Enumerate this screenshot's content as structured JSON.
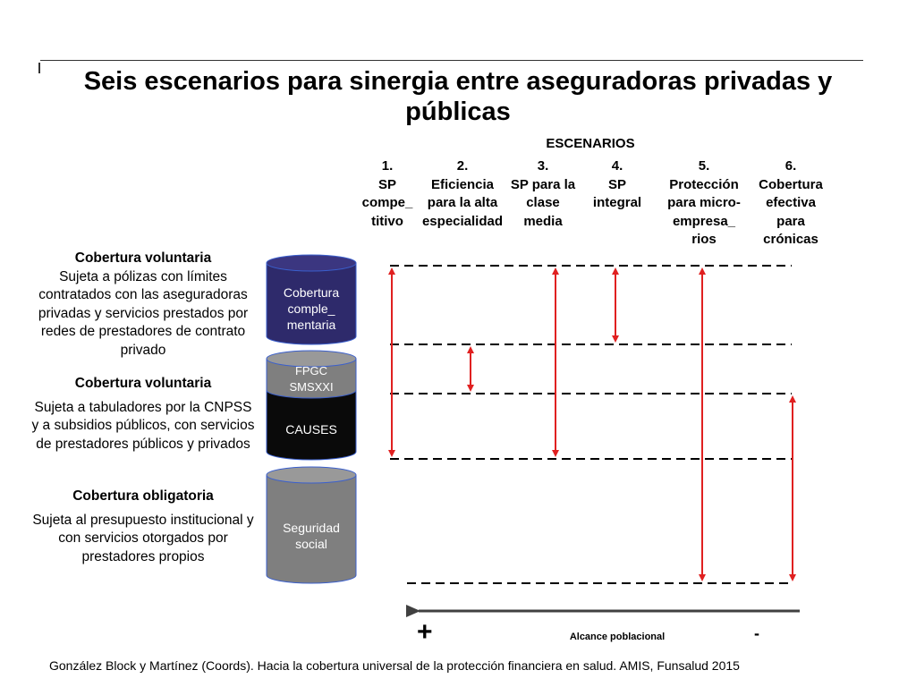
{
  "title": "Seis escenarios para sinergia entre aseguradoras privadas y públicas",
  "escenarios_header": "ESCENARIOS",
  "scenarios": [
    {
      "label": "1.\nSP\ncompe_\ntitivo"
    },
    {
      "label": "2.\nEficiencia\npara la alta\nespecialidad"
    },
    {
      "label": "3.\nSP para la\nclase\nmedia"
    },
    {
      "label": "4.\nSP\nintegral"
    },
    {
      "label": "5.\nProtección\npara micro-\nempresa_\nrios"
    },
    {
      "label": "6.\nCobertura\nefectiva\npara\ncrónicas"
    }
  ],
  "coverage": [
    {
      "heading": "Cobertura voluntaria",
      "text": "Sujeta a pólizas con límites contratados con las aseguradoras privadas y servicios prestados por redes de prestadores de contrato privado"
    },
    {
      "heading": "Cobertura voluntaria",
      "text": "Sujeta a tabuladores por la CNPSS y a subsidios públicos, con servicios de prestadores públicos y privados"
    },
    {
      "heading": "Cobertura obligatoria",
      "text": "Sujeta al presupuesto institucional y con servicios otorgados por prestadores propios"
    }
  ],
  "cylinders": {
    "complementaria": "Cobertura\ncomple_\nmentaria",
    "fpgc": "FPGC\nSMSXXI",
    "causes": "CAUSES",
    "seguridad": "Seguridad\nsocial"
  },
  "colors": {
    "complementaria": "#2e2a6b",
    "fpgc": "#7f7f7f",
    "causes": "#0a0a0a",
    "seguridad": "#7f7f7f",
    "cylinder_border": "#3a5fcd",
    "arrow": "#e02020"
  },
  "axis": {
    "plus": "+",
    "label": "Alcance poblacional",
    "minus": "-"
  },
  "footer": "González Block y Martínez (Coords). Hacia la cobertura universal de la protección financiera en salud. AMIS, Funsalud 2015"
}
